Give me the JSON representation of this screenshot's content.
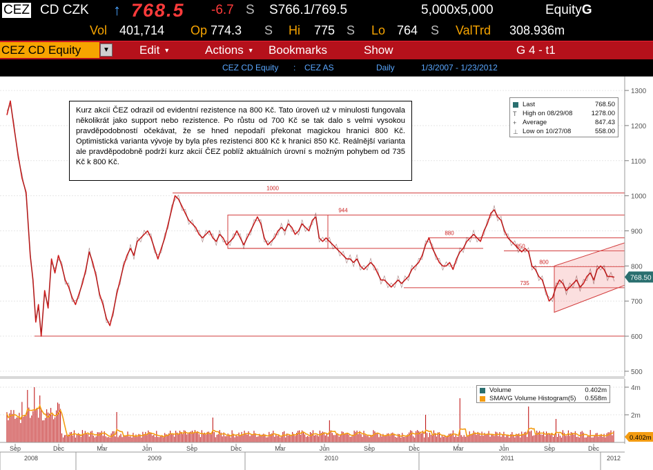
{
  "quote": {
    "ticker": "CEZ",
    "exchange_ccy": "CD CZK",
    "arrow": "↑",
    "last": "768.5",
    "change": "-6.7",
    "flag1": "S",
    "bid_ask": "S766.1/769.5",
    "flag2": "S",
    "size": "5,000x5,000",
    "equity": "Equity",
    "equity_g": "G",
    "vol_label": "Vol",
    "vol": "401,714",
    "op_label": "Op",
    "op": "774.3",
    "op_flag": "S",
    "hi_label": "Hi",
    "hi": "775",
    "hi_flag": "S",
    "lo_label": "Lo",
    "lo": "764",
    "lo_flag": "S",
    "valtrd_label": "ValTrd",
    "valtrd": "308.936m"
  },
  "menubar": {
    "security": "CEZ CD Equity",
    "edit": "Edit",
    "actions": "Actions",
    "bookmarks": "Bookmarks",
    "show": "Show",
    "page": "G 4 - t1"
  },
  "infobar": {
    "security": "CEZ CD Equity",
    "separator": ":",
    "name": "CEZ AS",
    "period": "Daily",
    "range": "1/3/2007 - 1/23/2012"
  },
  "note": "Kurz akcií ČEZ odrazil od evidentní rezistence na 800 Kč. Tato úroveň už v minulosti fungovala několikrát jako support nebo rezistence. Po růstu od 700 Kč se tak dalo s velmi vysokou pravděpodobností očekávat, že se hned nepodaří překonat magickou hranici 800 Kč. Optimistická varianta vývoje by byla přes rezistenci 800 Kč k hranici 850 Kč. Reálnější varianta ale pravděpodobně podrží kurz akcií ČEZ poblíž aktuálních úrovní s možným pohybem od 735 Kč k 800 Kč.",
  "legend": [
    {
      "label": "Last",
      "value": "768.50",
      "color": "#2a6f6f"
    },
    {
      "label": "High on 08/29/08",
      "value": "1278.00",
      "color": "#666666"
    },
    {
      "label": "Average",
      "value": "847.43",
      "color": "#666666"
    },
    {
      "label": "Low on 10/27/08",
      "value": "558.00",
      "color": "#666666"
    }
  ],
  "volume_legend": [
    {
      "label": "Volume",
      "value": "0.402m",
      "color": "#2a6f6f"
    },
    {
      "label": "SMAVG Volume Histogram(5)",
      "value": "0.558m",
      "color": "#f39c12"
    }
  ],
  "chart_data": {
    "type": "line",
    "price_axis": {
      "ticks": [
        500,
        600,
        700,
        800,
        900,
        1000,
        1100,
        1200,
        1300
      ],
      "ylim": [
        490,
        1310
      ]
    },
    "volume_axis": {
      "ticks": [
        "2m",
        "4m"
      ],
      "last_label": "0.402m"
    },
    "last_label": "768.50",
    "x_month_labels": [
      "Sep",
      "Dec",
      "Mar",
      "Jun",
      "Sep",
      "Dec",
      "Mar",
      "Jun",
      "Sep",
      "Dec",
      "Mar",
      "Jun",
      "Sep",
      "Dec"
    ],
    "x_year_labels": [
      "2008",
      "2009",
      "2010",
      "2011",
      "2012"
    ],
    "levels": [
      {
        "label": "1000",
        "value": 1008
      },
      {
        "label": "944",
        "value": 945
      },
      {
        "label": "880",
        "value": 880
      },
      {
        "label": "850",
        "value": 843
      },
      {
        "label": "800",
        "value": 798
      },
      {
        "label": "735",
        "value": 738
      },
      {
        "label": "",
        "value": 600
      }
    ],
    "price_series": {
      "name": "Last",
      "x": [
        0,
        5,
        10,
        16,
        22,
        28,
        34,
        38,
        42,
        46,
        50,
        55,
        60,
        65,
        70,
        75,
        80,
        85,
        90,
        95,
        100,
        105,
        110,
        115,
        120,
        125,
        130,
        135,
        140,
        145,
        150,
        155,
        160,
        165,
        170,
        175,
        180,
        185,
        190,
        195,
        200,
        205,
        210,
        215,
        220,
        225,
        230,
        235,
        240,
        245,
        250,
        255,
        260,
        265,
        270,
        275,
        280,
        285,
        290,
        295,
        300,
        305,
        310,
        315,
        320,
        325,
        330,
        335,
        340,
        345,
        350,
        355,
        360,
        365,
        370,
        375,
        380,
        385,
        390,
        395,
        400,
        405,
        410,
        415,
        420,
        425,
        430,
        435,
        440,
        445,
        450,
        455,
        460,
        465,
        470,
        475,
        480,
        485,
        490,
        495,
        500,
        505,
        510,
        515,
        520,
        525,
        530,
        535,
        540,
        545,
        550,
        555,
        560,
        565,
        570,
        575,
        580,
        585,
        590,
        595,
        600,
        605,
        610,
        615,
        620,
        625,
        630,
        635,
        640,
        645,
        650,
        655,
        660,
        665,
        670,
        675,
        680,
        685,
        690,
        695,
        700,
        705,
        710,
        715,
        720,
        725,
        730,
        735,
        740,
        745,
        750,
        755,
        760,
        765,
        770,
        775,
        780,
        785,
        790,
        795,
        800,
        805,
        810,
        815,
        820,
        825,
        830,
        835,
        840,
        845,
        850,
        855,
        860,
        865,
        870,
        875,
        880,
        885
      ],
      "y": [
        1230,
        1270,
        1200,
        1120,
        1050,
        1010,
        830,
        760,
        640,
        690,
        600,
        730,
        680,
        820,
        780,
        830,
        800,
        760,
        740,
        710,
        690,
        720,
        750,
        790,
        840,
        810,
        770,
        720,
        690,
        650,
        630,
        670,
        720,
        760,
        800,
        830,
        850,
        830,
        870,
        880,
        890,
        900,
        880,
        850,
        820,
        850,
        880,
        920,
        960,
        1000,
        990,
        970,
        950,
        930,
        920,
        910,
        890,
        880,
        890,
        900,
        880,
        870,
        890,
        880,
        860,
        870,
        880,
        900,
        880,
        860,
        880,
        900,
        920,
        940,
        920,
        880,
        860,
        870,
        880,
        900,
        910,
        900,
        920,
        910,
        890,
        900,
        920,
        910,
        900,
        930,
        940,
        880,
        870,
        880,
        870,
        860,
        850,
        840,
        830,
        820,
        820,
        810,
        820,
        800,
        790,
        800,
        810,
        800,
        780,
        760,
        760,
        750,
        740,
        750,
        760,
        750,
        760,
        770,
        790,
        800,
        810,
        830,
        860,
        880,
        850,
        830,
        810,
        800,
        800,
        810,
        790,
        820,
        840,
        850,
        870,
        880,
        890,
        880,
        870,
        900,
        920,
        950,
        960,
        940,
        930,
        900,
        880,
        870,
        860,
        850,
        840,
        850,
        840,
        800,
        790,
        770,
        760,
        730,
        700,
        710,
        740,
        760,
        750,
        730,
        740,
        750,
        760,
        740,
        750,
        770,
        780,
        760,
        790,
        800,
        790,
        770,
        770,
        768
      ]
    },
    "volume_series": {
      "name": "Volume",
      "unit": "m",
      "peaks": [
        {
          "x": 30,
          "value": 3.8
        },
        {
          "x": 40,
          "value": 4.0
        },
        {
          "x": 48,
          "value": 3.4
        },
        {
          "x": 160,
          "value": 2.2
        },
        {
          "x": 300,
          "value": 1.8
        },
        {
          "x": 470,
          "value": 1.6
        },
        {
          "x": 610,
          "value": 2.0
        },
        {
          "x": 660,
          "value": 3.2
        },
        {
          "x": 760,
          "value": 2.6
        },
        {
          "x": 800,
          "value": 1.7
        }
      ]
    }
  }
}
